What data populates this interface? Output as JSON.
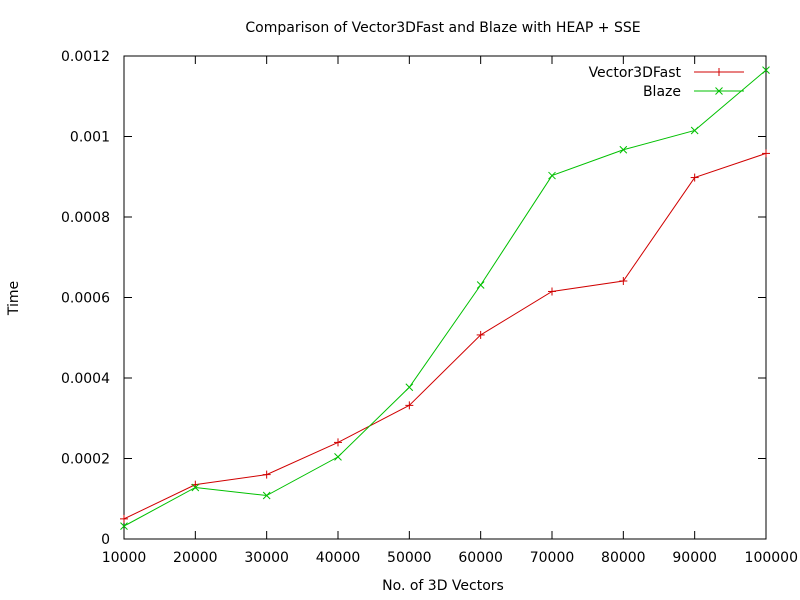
{
  "chart_data": {
    "type": "line",
    "title": "Comparison of Vector3DFast and Blaze with HEAP + SSE",
    "xlabel": "No. of 3D Vectors",
    "ylabel": "Time",
    "xlim": [
      10000,
      100000
    ],
    "ylim": [
      0,
      0.0012
    ],
    "x_ticks": [
      10000,
      20000,
      30000,
      40000,
      50000,
      60000,
      70000,
      80000,
      90000,
      100000
    ],
    "y_ticks": [
      0,
      0.0002,
      0.0004,
      0.0006,
      0.0008,
      0.001,
      0.0012
    ],
    "grid": false,
    "legend_position": "top-right",
    "series": [
      {
        "name": "Vector3DFast",
        "color": "#d00000",
        "marker": "plus",
        "x": [
          10000,
          20000,
          30000,
          40000,
          50000,
          60000,
          70000,
          80000,
          90000,
          100000
        ],
        "values": [
          5e-05,
          0.000135,
          0.00016,
          0.00024,
          0.000332,
          0.000507,
          0.000615,
          0.000641,
          0.000898,
          0.000958
        ]
      },
      {
        "name": "Blaze",
        "color": "#00c000",
        "marker": "cross",
        "x": [
          10000,
          20000,
          30000,
          40000,
          50000,
          60000,
          70000,
          80000,
          90000,
          100000
        ],
        "values": [
          3.2e-05,
          0.000128,
          0.000108,
          0.000204,
          0.000377,
          0.000631,
          0.000903,
          0.000967,
          0.001015,
          0.001165
        ]
      }
    ]
  }
}
